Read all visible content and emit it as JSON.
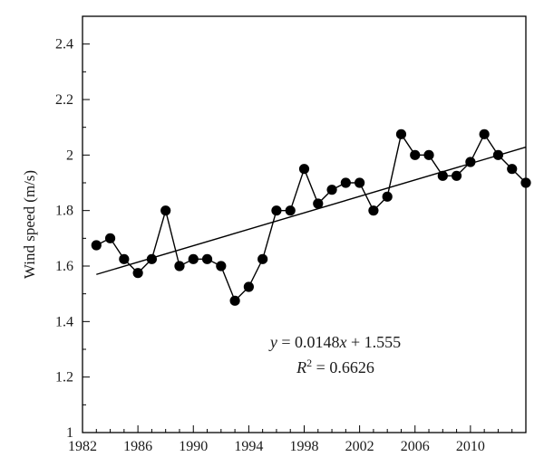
{
  "chart_data": {
    "type": "scatter",
    "title": "",
    "xlabel": "",
    "ylabel": "Wind speed (m/s)",
    "xlim": [
      1982,
      2014
    ],
    "ylim": [
      1,
      2.5
    ],
    "x_ticks": [
      1982,
      1986,
      1990,
      1994,
      1998,
      2002,
      2006,
      2010
    ],
    "x_tick_labels": [
      "1982",
      "1986",
      "1990",
      "1994",
      "1998",
      "2002",
      "2006",
      "2010"
    ],
    "y_ticks": [
      1,
      1.2,
      1.4,
      1.6,
      1.8,
      2,
      2.2,
      2.4
    ],
    "y_tick_labels": [
      "1",
      "1.2",
      "1.4",
      "1.6",
      "1.8",
      "2",
      "2.2",
      "2.4"
    ],
    "grid": false,
    "legend": "none",
    "series": [
      {
        "x": [
          1983,
          1984,
          1985,
          1986,
          1987,
          1988,
          1989,
          1990,
          1991,
          1992,
          1993,
          1994,
          1995,
          1996,
          1997,
          1998,
          1999,
          2000,
          2001,
          2002,
          2003,
          2004,
          2005,
          2006,
          2007,
          2008,
          2009,
          2010,
          2011,
          2012,
          2013,
          2014
        ],
        "values": [
          1.675,
          1.7,
          1.625,
          1.575,
          1.625,
          1.8,
          1.6,
          1.625,
          1.625,
          1.6,
          1.475,
          1.525,
          1.625,
          1.8,
          1.8,
          1.95,
          1.825,
          1.875,
          1.9,
          1.9,
          1.8,
          1.85,
          2.075,
          2.0,
          2.0,
          1.925,
          1.925,
          1.975,
          2.075,
          2.0,
          1.95,
          1.9
        ]
      }
    ],
    "trendline": {
      "slope": 0.0148,
      "intercept": 1.555,
      "index_start": 1,
      "index_end": 32
    },
    "annotations": {
      "equation": {
        "lhs": "y",
        "rhs": " = 0.0148",
        "var": "x",
        "tail": " + 1.555"
      },
      "r2": {
        "base": "R",
        "sup": "2",
        "rest": " = 0.6626"
      }
    },
    "colors": {
      "marker": "#000000",
      "line": "#000000",
      "axis": "#000000"
    }
  }
}
